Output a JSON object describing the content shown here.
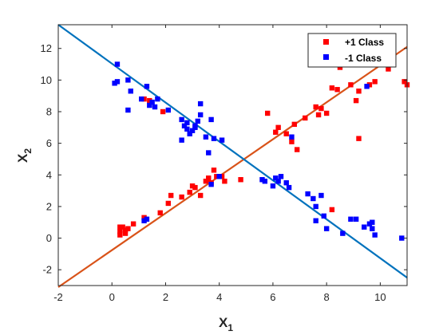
{
  "chart_data": {
    "type": "scatter",
    "title": "",
    "xlabel": "X",
    "xlabel_subscript": "1",
    "ylabel": "X",
    "ylabel_subscript": "2",
    "xlim": [
      -2,
      11
    ],
    "ylim": [
      -3,
      13.5
    ],
    "xticks": [
      -2,
      0,
      2,
      4,
      6,
      8,
      10
    ],
    "yticks": [
      -2,
      0,
      2,
      4,
      6,
      8,
      10,
      12
    ],
    "grid": false,
    "legend_position": "top-right",
    "series": [
      {
        "name": "+1 Class",
        "color": "#ff0000",
        "marker": "square",
        "points": [
          [
            0.3,
            0.4
          ],
          [
            0.4,
            0.7
          ],
          [
            0.5,
            0.5
          ],
          [
            0.6,
            0.6
          ],
          [
            0.3,
            0.7
          ],
          [
            0.5,
            0.3
          ],
          [
            0.3,
            0.2
          ],
          [
            0.8,
            0.9
          ],
          [
            1.2,
            1.3
          ],
          [
            1.8,
            1.6
          ],
          [
            2.1,
            2.2
          ],
          [
            2.2,
            2.7
          ],
          [
            2.6,
            2.6
          ],
          [
            2.9,
            2.9
          ],
          [
            3.1,
            3.2
          ],
          [
            3.3,
            2.7
          ],
          [
            3.5,
            3.6
          ],
          [
            3.6,
            3.8
          ],
          [
            3.7,
            3.5
          ],
          [
            3.8,
            4.3
          ],
          [
            3.9,
            3.9
          ],
          [
            4.1,
            3.9
          ],
          [
            4.2,
            3.6
          ],
          [
            4.8,
            3.7
          ],
          [
            5.8,
            7.9
          ],
          [
            6.1,
            6.7
          ],
          [
            6.2,
            7.0
          ],
          [
            6.5,
            6.6
          ],
          [
            6.7,
            6.1
          ],
          [
            6.8,
            7.2
          ],
          [
            6.9,
            5.6
          ],
          [
            7.2,
            7.6
          ],
          [
            7.6,
            8.3
          ],
          [
            7.7,
            7.8
          ],
          [
            7.8,
            8.2
          ],
          [
            8.0,
            7.9
          ],
          [
            8.2,
            9.5
          ],
          [
            8.4,
            9.4
          ],
          [
            8.5,
            10.8
          ],
          [
            8.2,
            1.8
          ],
          [
            8.9,
            9.7
          ],
          [
            9.1,
            8.7
          ],
          [
            9.2,
            9.3
          ],
          [
            9.2,
            6.3
          ],
          [
            9.6,
            9.7
          ],
          [
            9.8,
            9.9
          ],
          [
            10.3,
            10.7
          ],
          [
            10.9,
            9.9
          ],
          [
            11.0,
            9.7
          ],
          [
            1.9,
            8.0
          ],
          [
            1.2,
            8.8
          ],
          [
            1.4,
            8.7
          ],
          [
            3.0,
            3.3
          ],
          [
            3.6,
            3.7
          ]
        ]
      },
      {
        "name": "-1 Class",
        "color": "#0000ff",
        "marker": "square",
        "points": [
          [
            0.2,
            11.0
          ],
          [
            0.1,
            9.8
          ],
          [
            0.2,
            9.9
          ],
          [
            0.6,
            10.0
          ],
          [
            0.7,
            9.3
          ],
          [
            0.6,
            8.1
          ],
          [
            1.1,
            8.8
          ],
          [
            1.3,
            9.6
          ],
          [
            1.4,
            8.4
          ],
          [
            1.5,
            8.6
          ],
          [
            1.6,
            8.3
          ],
          [
            1.7,
            8.8
          ],
          [
            2.1,
            8.1
          ],
          [
            2.6,
            7.5
          ],
          [
            2.7,
            7.1
          ],
          [
            2.8,
            7.3
          ],
          [
            2.9,
            6.6
          ],
          [
            3.1,
            7.0
          ],
          [
            3.2,
            7.4
          ],
          [
            3.3,
            7.8
          ],
          [
            3.1,
            7.1
          ],
          [
            3.3,
            8.5
          ],
          [
            3.5,
            6.4
          ],
          [
            3.6,
            5.4
          ],
          [
            3.7,
            7.5
          ],
          [
            3.8,
            6.3
          ],
          [
            4.1,
            6.2
          ],
          [
            2.6,
            6.2
          ],
          [
            2.8,
            6.9
          ],
          [
            3.0,
            6.8
          ],
          [
            5.6,
            3.7
          ],
          [
            5.7,
            3.6
          ],
          [
            6.0,
            3.3
          ],
          [
            6.1,
            3.8
          ],
          [
            6.2,
            3.6
          ],
          [
            6.3,
            3.9
          ],
          [
            6.5,
            3.5
          ],
          [
            6.6,
            3.2
          ],
          [
            6.7,
            6.4
          ],
          [
            7.3,
            2.8
          ],
          [
            7.5,
            2.5
          ],
          [
            7.6,
            2.0
          ],
          [
            7.8,
            2.7
          ],
          [
            7.9,
            1.4
          ],
          [
            7.6,
            1.1
          ],
          [
            8.0,
            0.6
          ],
          [
            8.6,
            0.3
          ],
          [
            8.9,
            1.2
          ],
          [
            9.1,
            1.2
          ],
          [
            9.4,
            0.7
          ],
          [
            9.6,
            0.9
          ],
          [
            9.7,
            0.6
          ],
          [
            9.8,
            0.2
          ],
          [
            9.7,
            1.0
          ],
          [
            10.8,
            0.0
          ],
          [
            9.5,
            9.6
          ],
          [
            3.7,
            3.4
          ],
          [
            4.0,
            3.9
          ],
          [
            1.3,
            1.2
          ],
          [
            1.2,
            1.1
          ]
        ]
      }
    ],
    "lines": [
      {
        "color": "#d95319",
        "endpoints": [
          [
            -2,
            -3.1
          ],
          [
            11,
            12.1
          ]
        ]
      },
      {
        "color": "#0072bd",
        "endpoints": [
          [
            -2,
            13.5
          ],
          [
            11,
            -2.5
          ]
        ]
      }
    ]
  }
}
